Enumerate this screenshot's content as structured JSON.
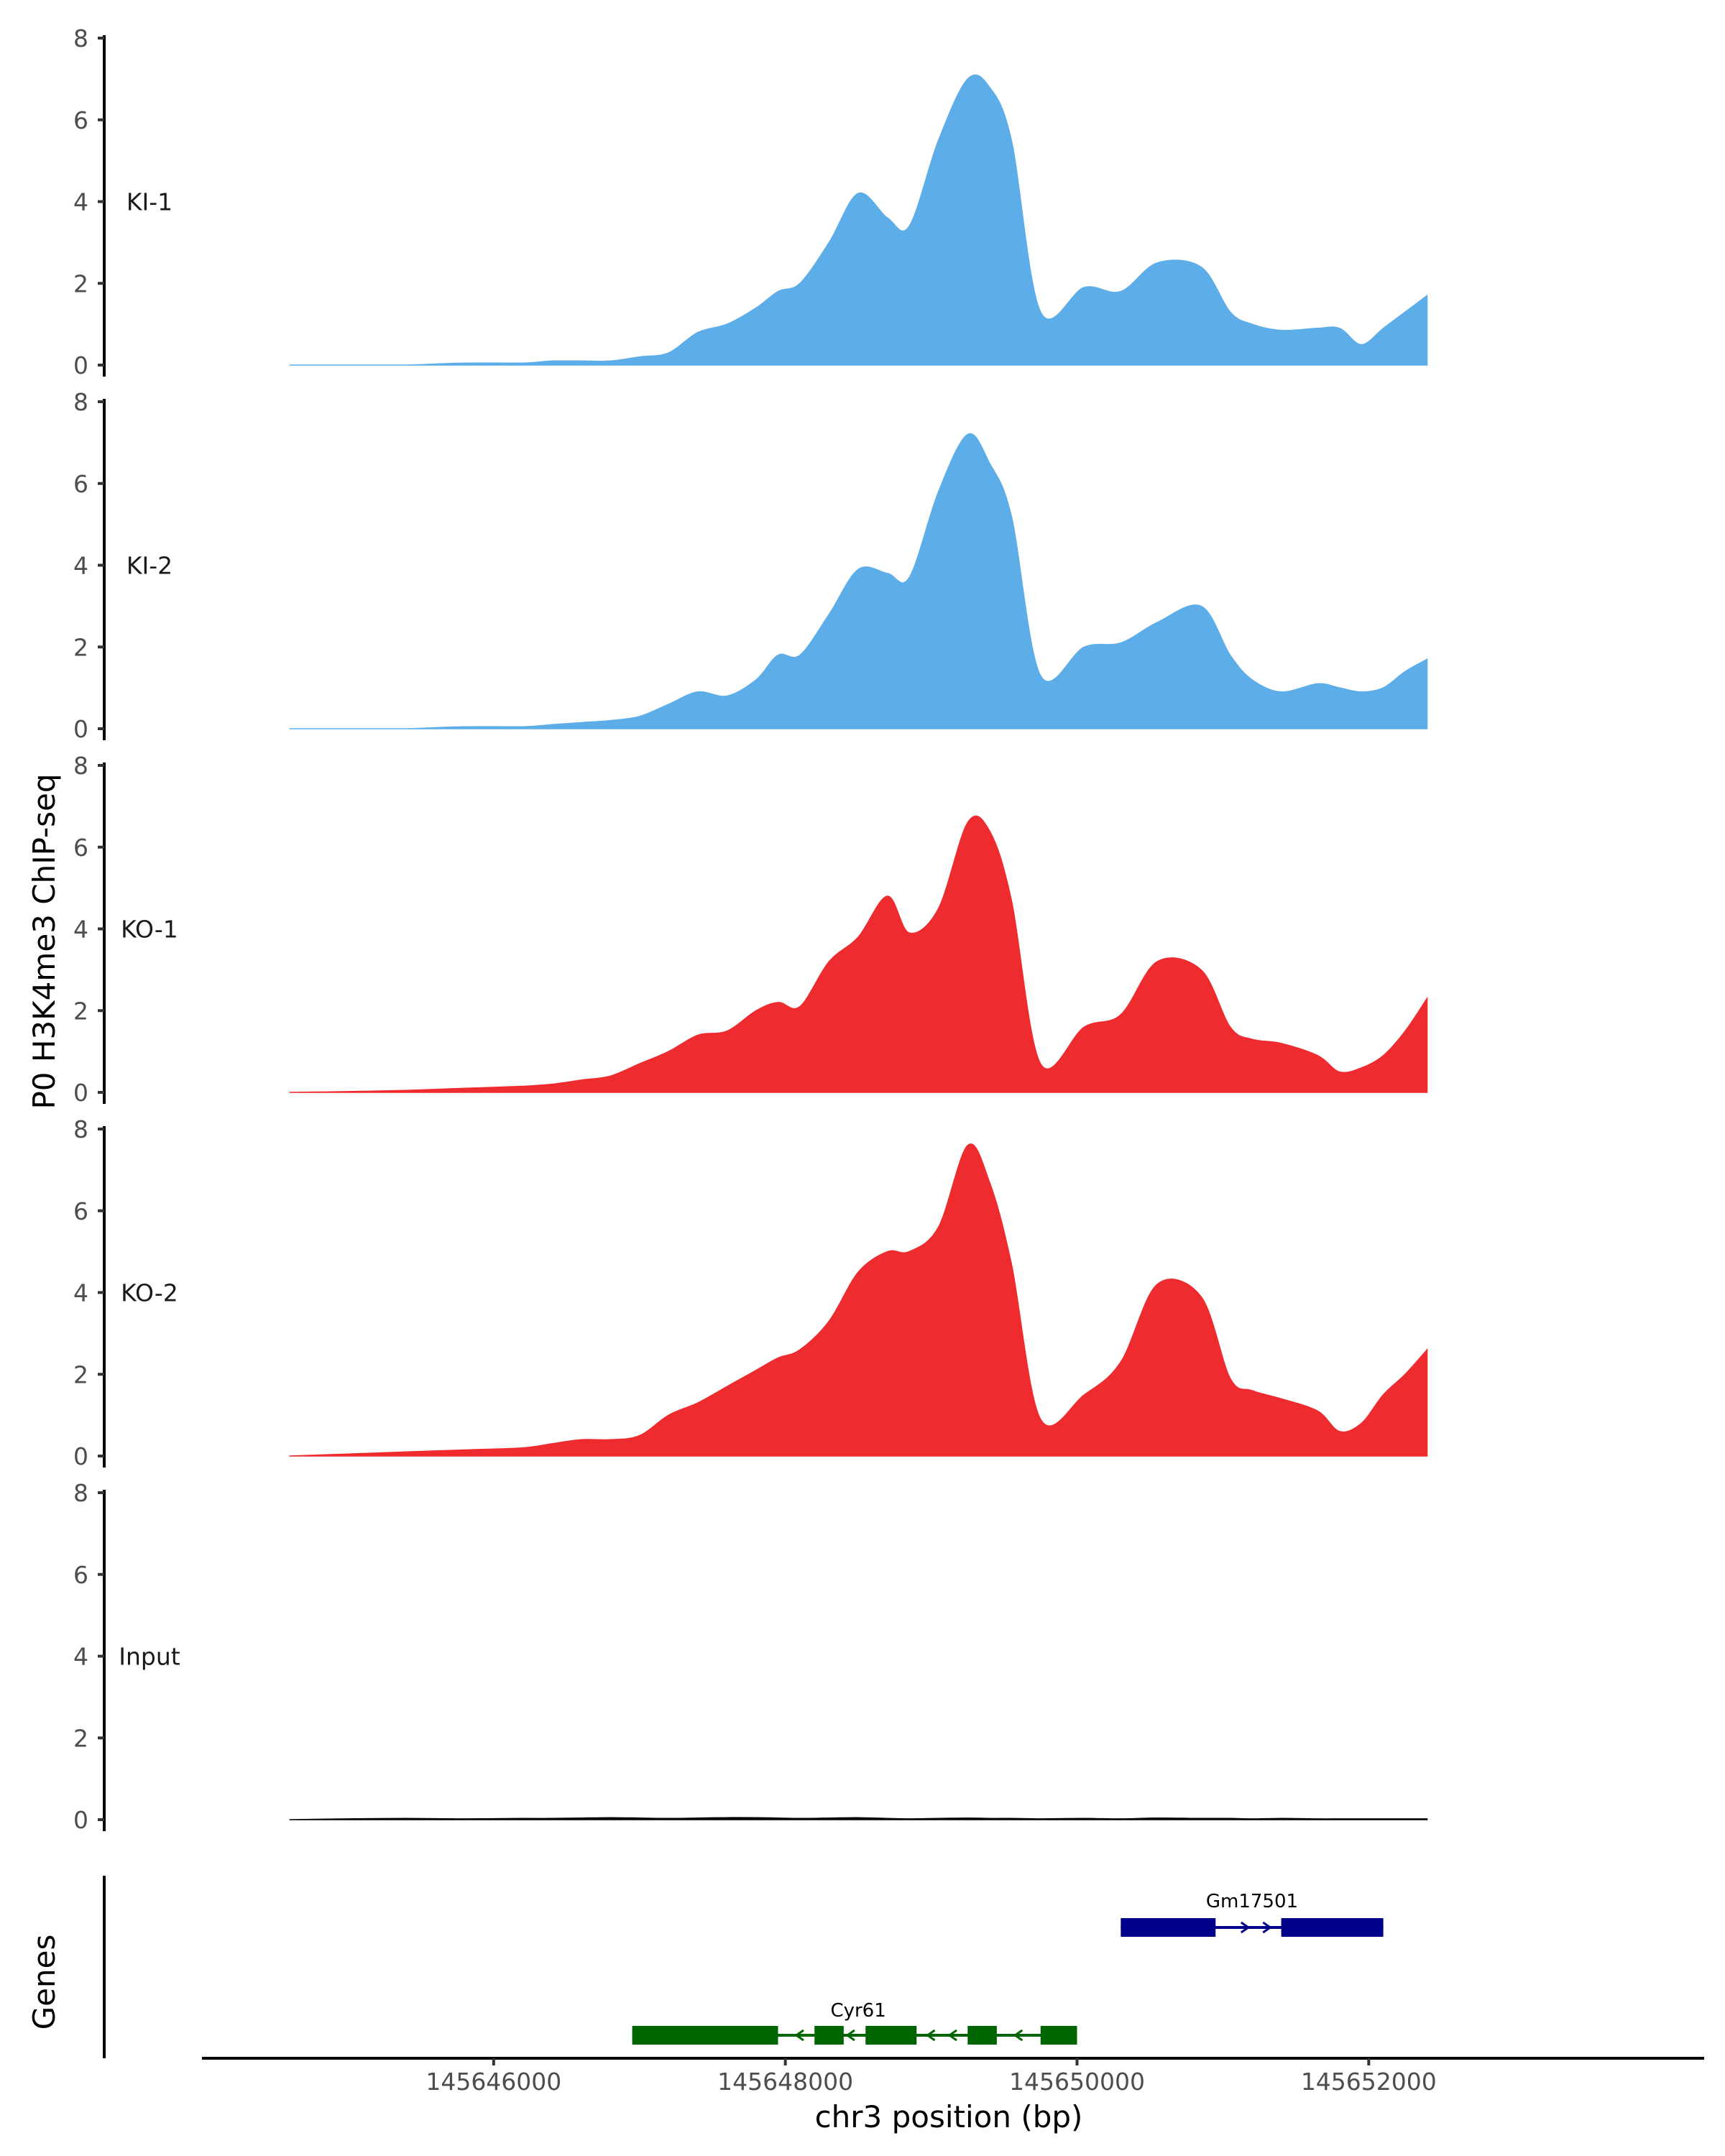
{
  "chart_data": {
    "type": "area",
    "ylabel": "P0 H3K4me3 ChIP-seq",
    "xlabel": "chr3 position (bp)",
    "genes_label": "Genes",
    "ylim": [
      0,
      8
    ],
    "xlim": [
      145644000,
      145654300
    ],
    "y_ticks": [
      "0",
      "2",
      "4",
      "6",
      "8"
    ],
    "x_ticks": [
      {
        "value": 145646000,
        "label": "145646000"
      },
      {
        "value": 145648000,
        "label": "145648000"
      },
      {
        "value": 145650000,
        "label": "145650000"
      },
      {
        "value": 145652000,
        "label": "145652000"
      }
    ],
    "x": [
      145644600,
      145645000,
      145645400,
      145645800,
      145646200,
      145646400,
      145646600,
      145646800,
      145647000,
      145647200,
      145647400,
      145647600,
      145647800,
      145647950,
      145648100,
      145648300,
      145648500,
      145648700,
      145648850,
      145649050,
      145649250,
      145649400,
      145649550,
      145649750,
      145650050,
      145650300,
      145650550,
      145650850,
      145651050,
      145651200,
      145651400,
      145651650,
      145651800,
      145651950,
      145652100,
      145652250,
      145652400
    ],
    "series": [
      {
        "name": "KI-1",
        "color": "#5dade9",
        "values": [
          0,
          0,
          0,
          0.05,
          0.05,
          0.1,
          0.1,
          0.1,
          0.2,
          0.3,
          0.8,
          1.0,
          1.4,
          1.8,
          2.0,
          3.0,
          4.2,
          3.6,
          3.4,
          5.5,
          7.0,
          6.8,
          5.5,
          1.3,
          1.9,
          1.8,
          2.5,
          2.4,
          1.3,
          1.0,
          0.85,
          0.9,
          0.9,
          0.5,
          0.9,
          1.3,
          1.7
        ]
      },
      {
        "name": "KI-2",
        "color": "#5dade9",
        "values": [
          0,
          0,
          0,
          0.05,
          0.05,
          0.1,
          0.15,
          0.2,
          0.3,
          0.6,
          0.9,
          0.8,
          1.2,
          1.8,
          1.8,
          2.8,
          3.9,
          3.8,
          3.7,
          5.8,
          7.2,
          6.5,
          5.2,
          1.3,
          2.0,
          2.1,
          2.6,
          3.0,
          1.8,
          1.2,
          0.9,
          1.1,
          1.0,
          0.9,
          1.0,
          1.4,
          1.7
        ]
      },
      {
        "name": "KO-1",
        "color": "#ee2b2e",
        "values": [
          0,
          0.02,
          0.05,
          0.1,
          0.15,
          0.2,
          0.3,
          0.4,
          0.7,
          1.0,
          1.4,
          1.5,
          2.0,
          2.2,
          2.1,
          3.2,
          3.8,
          4.8,
          3.9,
          4.5,
          6.6,
          6.4,
          4.7,
          0.7,
          1.6,
          1.9,
          3.2,
          3.0,
          1.6,
          1.3,
          1.2,
          0.9,
          0.5,
          0.6,
          0.9,
          1.5,
          2.3
        ]
      },
      {
        "name": "KO-2",
        "color": "#ee2b2e",
        "values": [
          0,
          0.05,
          0.1,
          0.15,
          0.2,
          0.3,
          0.4,
          0.4,
          0.5,
          1.0,
          1.3,
          1.7,
          2.1,
          2.4,
          2.6,
          3.3,
          4.5,
          5.0,
          5.0,
          5.6,
          7.6,
          6.7,
          4.7,
          0.9,
          1.5,
          2.3,
          4.2,
          3.9,
          1.9,
          1.6,
          1.4,
          1.1,
          0.6,
          0.8,
          1.5,
          2.0,
          2.6
        ]
      },
      {
        "name": "Input",
        "color": "#000000",
        "values": [
          0,
          0.02,
          0.03,
          0.02,
          0.03,
          0.03,
          0.04,
          0.05,
          0.04,
          0.03,
          0.04,
          0.05,
          0.05,
          0.04,
          0.03,
          0.04,
          0.05,
          0.03,
          0.02,
          0.03,
          0.04,
          0.03,
          0.03,
          0.02,
          0.03,
          0.02,
          0.04,
          0.03,
          0.03,
          0.02,
          0.03,
          0.02,
          0.02,
          0.02,
          0.02,
          0.02,
          0.02
        ]
      }
    ],
    "genes": [
      {
        "name": "Gm17501",
        "color": "#00008b",
        "strand": "+",
        "start": 145650300,
        "end": 145652100,
        "exons": [
          [
            145650300,
            145650950
          ],
          [
            145651400,
            145652100
          ]
        ],
        "arrows": [
          145650350,
          145651150,
          145651300
        ]
      },
      {
        "name": "Cyr61",
        "color": "#006400",
        "strand": "-",
        "start": 145646950,
        "end": 145650000,
        "exons": [
          [
            145646950,
            145647950
          ],
          [
            145648200,
            145648400
          ],
          [
            145648550,
            145648900
          ],
          [
            145649250,
            145649450
          ],
          [
            145649750,
            145650000
          ]
        ],
        "arrows": [
          145648100,
          145648450,
          145649000,
          145649150,
          145649600
        ]
      }
    ]
  }
}
